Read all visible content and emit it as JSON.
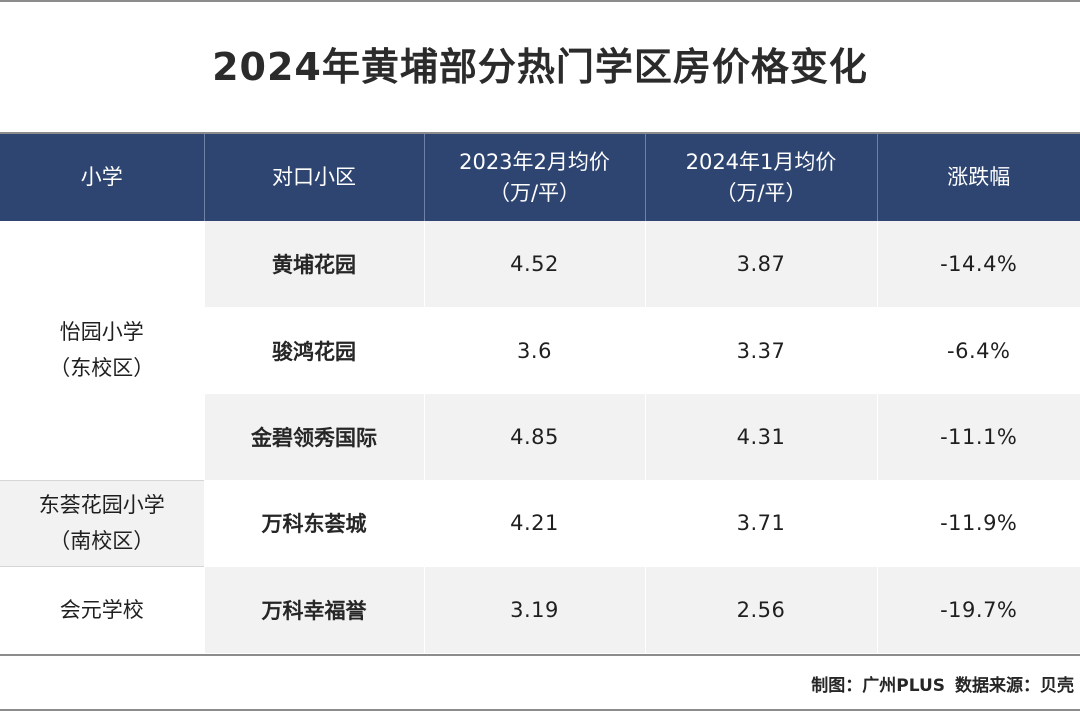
{
  "title": "2024年黄埔部分热门学区房价格变化",
  "table": {
    "headers": {
      "school": "小学",
      "community": "对口小区",
      "price2023": "2023年2月均价",
      "price2023_unit": "（万/平）",
      "price2024": "2024年1月均价",
      "price2024_unit": "（万/平）",
      "change": "涨跌幅"
    },
    "groups": [
      {
        "school_line1": "怡园小学",
        "school_line2": "（东校区）",
        "rows": [
          {
            "community": "黄埔花园",
            "price2023": "4.52",
            "price2024": "3.87",
            "change": "-14.4%"
          },
          {
            "community": "骏鸿花园",
            "price2023": "3.6",
            "price2024": "3.37",
            "change": "-6.4%"
          },
          {
            "community": "金碧领秀国际",
            "price2023": "4.85",
            "price2024": "4.31",
            "change": "-11.1%"
          }
        ]
      },
      {
        "school_line1": "东荟花园小学",
        "school_line2": "（南校区）",
        "rows": [
          {
            "community": "万科东荟城",
            "price2023": "4.21",
            "price2024": "3.71",
            "change": "-11.9%"
          }
        ]
      },
      {
        "school_line1": "会元学校",
        "school_line2": "",
        "rows": [
          {
            "community": "万科幸福誉",
            "price2023": "3.19",
            "price2024": "2.56",
            "change": "-19.7%"
          }
        ]
      }
    ]
  },
  "footer": {
    "credit": "制图：广州PLUS",
    "source": "数据来源：贝壳"
  }
}
